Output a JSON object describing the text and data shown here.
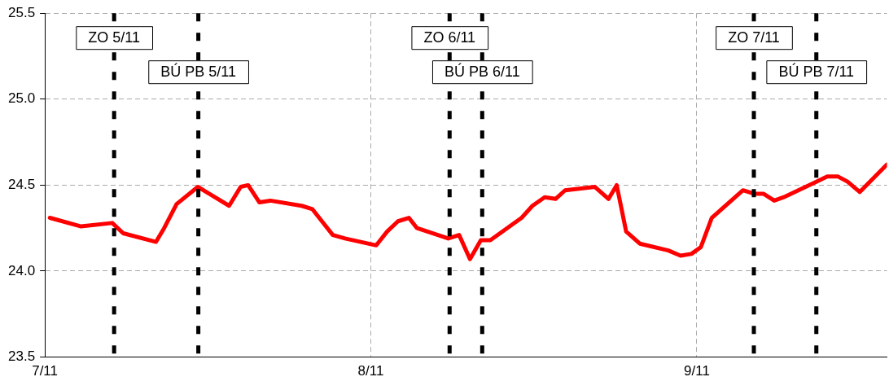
{
  "chart_data": {
    "type": "line",
    "x": [
      "--11-07T00:22",
      "--11-07T02:40",
      "--11-07T04:58",
      "--11-07T05:46",
      "--11-07T08:11",
      "--11-07T08:47",
      "--11-07T09:42",
      "--11-07T11:16",
      "--11-07T13:34",
      "--11-07T14:25",
      "--11-07T14:58",
      "--11-07T15:48",
      "--11-07T16:36",
      "--11-07T18:54",
      "--11-07T19:42",
      "--11-07T20:24",
      "--11-07T21:12",
      "--11-07T22:06",
      "--11-08T00:24",
      "--11-08T01:12",
      "--11-08T02:00",
      "--11-08T02:48",
      "--11-08T03:24",
      "--11-08T05:42",
      "--11-08T06:30",
      "--11-08T07:18",
      "--11-08T08:06",
      "--11-08T08:48",
      "--11-08T11:06",
      "--11-08T11:54",
      "--11-08T12:48",
      "--11-08T13:36",
      "--11-08T14:18",
      "--11-08T16:30",
      "--11-08T17:30",
      "--11-08T18:06",
      "--11-08T18:48",
      "--11-08T19:48",
      "--11-08T21:54",
      "--11-08T22:48",
      "--11-08T23:36",
      "--11-09T00:18",
      "--11-09T01:06",
      "--11-09T03:24",
      "--11-09T04:12",
      "--11-09T04:54",
      "--11-09T05:42",
      "--11-09T06:24",
      "--11-09T08:48",
      "--11-09T09:36",
      "--11-09T10:24",
      "--11-09T11:06",
      "--11-09T12:00",
      "--11-09T14:00"
    ],
    "series": [
      {
        "color": "#ff0000",
        "values": [
          24.31,
          24.26,
          24.28,
          24.22,
          24.17,
          24.25,
          24.39,
          24.49,
          24.38,
          24.49,
          24.5,
          24.4,
          24.41,
          24.38,
          24.36,
          24.29,
          24.21,
          24.19,
          24.15,
          24.23,
          24.29,
          24.31,
          24.25,
          24.19,
          24.21,
          24.07,
          24.18,
          24.18,
          24.31,
          24.38,
          24.43,
          24.42,
          24.47,
          24.49,
          24.42,
          24.5,
          24.23,
          24.16,
          24.12,
          24.09,
          24.1,
          24.14,
          24.31,
          24.47,
          24.45,
          24.45,
          24.41,
          24.43,
          24.52,
          24.55,
          24.55,
          24.52,
          24.46,
          24.62
        ]
      }
    ],
    "xlim": [
      "--11-07T00:00",
      "--11-09T14:00"
    ],
    "xticks": [
      {
        "value": "--11-07",
        "label": "7/11"
      },
      {
        "value": "--11-08",
        "label": "8/11"
      },
      {
        "value": "--11-09",
        "label": "9/11"
      }
    ],
    "ylim": [
      23.5,
      25.5
    ],
    "yticks": [
      {
        "value": 23.5,
        "label": "23.5"
      },
      {
        "value": 24,
        "label": "24.0"
      },
      {
        "value": 24.5,
        "label": "24.5"
      },
      {
        "value": 25,
        "label": "25.0"
      },
      {
        "value": 25.5,
        "label": "25.5"
      }
    ],
    "grid": true,
    "legend": false,
    "marker": "none",
    "line_style": "solid",
    "ref_lines": [
      {
        "axis": "x",
        "value": "--11-07T05:06",
        "label": "ZO 5/11",
        "color": "#000000",
        "line_style": "dashed"
      },
      {
        "axis": "x",
        "value": "--11-07T11:18",
        "label": "BÚ PB 5/11",
        "color": "#000000",
        "line_style": "dashed"
      },
      {
        "axis": "x",
        "value": "--11-08T05:48",
        "label": "ZO 6/11",
        "color": "#000000",
        "line_style": "dashed"
      },
      {
        "axis": "x",
        "value": "--11-08T08:12",
        "label": "BÚ PB 6/11",
        "color": "#000000",
        "line_style": "dashed"
      },
      {
        "axis": "x",
        "value": "--11-09T04:12",
        "label": "ZO 7/11",
        "color": "#000000",
        "line_style": "dashed"
      },
      {
        "axis": "x",
        "value": "--11-09T08:48",
        "label": "BÚ PB 7/11",
        "color": "#000000",
        "line_style": "dashed"
      }
    ]
  }
}
